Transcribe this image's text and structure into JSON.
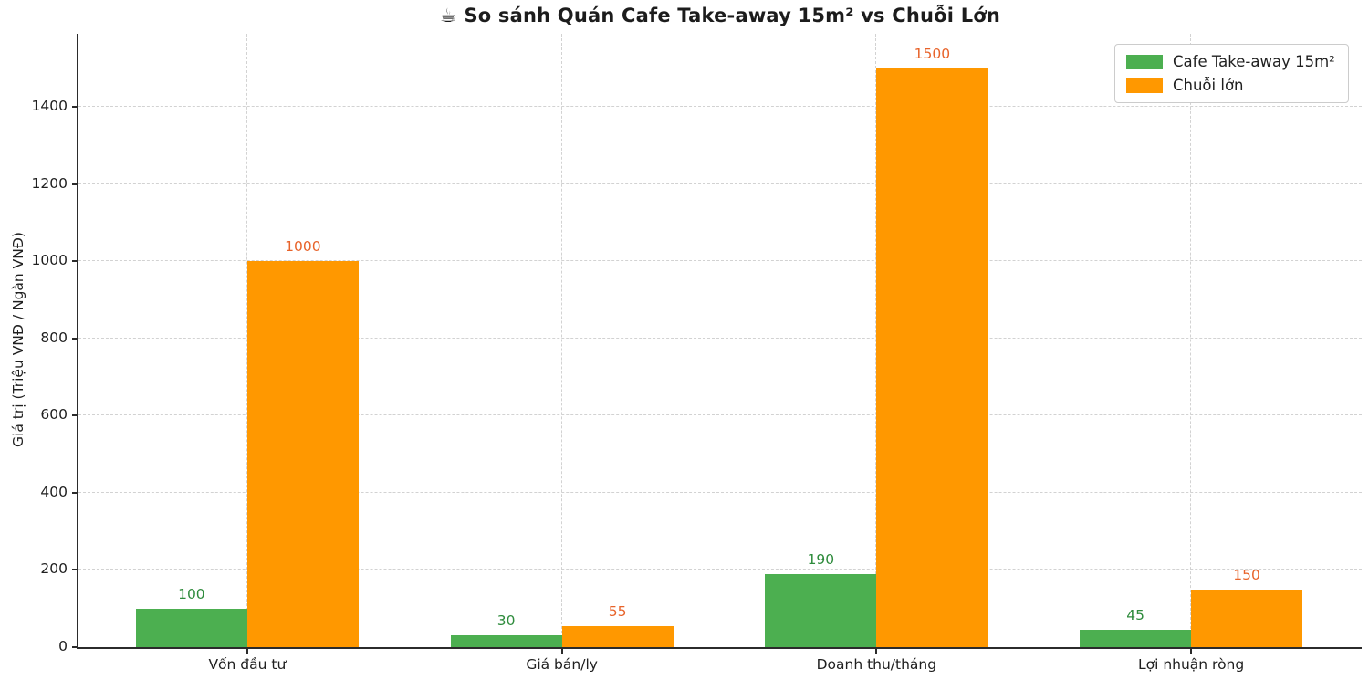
{
  "title": "☕ So sánh Quán Cafe Take-away 15m² vs Chuỗi Lớn",
  "chart_data": {
    "type": "bar",
    "title": "☕ So sánh Quán Cafe Take-away 15m² vs Chuỗi Lớn",
    "xlabel": "",
    "ylabel": "Giá trị (Triệu VNĐ / Ngàn VNĐ)",
    "categories": [
      "Vốn đầu tư",
      "Giá bán/ly",
      "Doanh thu/tháng",
      "Lợi nhuận ròng"
    ],
    "series": [
      {
        "name": "Cafe Take-away 15m²",
        "values": [
          100,
          30,
          190,
          45
        ],
        "bar_color": "#4caf50",
        "label_color": "#2e8b3c"
      },
      {
        "name": "Chuỗi lớn",
        "values": [
          1000,
          55,
          1500,
          150
        ],
        "bar_color": "#ff9800",
        "label_color": "#e8632a"
      }
    ],
    "yticks": [
      0,
      200,
      400,
      600,
      800,
      1000,
      1200,
      1400
    ],
    "ylim": [
      0,
      1589
    ],
    "grid": "dashed-both-axes",
    "legend_position": "upper right",
    "spines": [
      "left",
      "bottom"
    ]
  }
}
